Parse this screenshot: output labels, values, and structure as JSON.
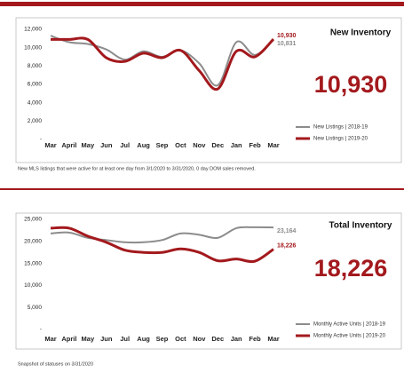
{
  "chart_data": [
    {
      "type": "line",
      "title": "New Inventory",
      "headline": "10,930",
      "note": "New MLS listings that were active for at least one day from 3/1/2020 to 3/31/2020, 0 day DOM sales removed.",
      "categories": [
        "Mar",
        "April",
        "May",
        "Jun",
        "Jul",
        "Aug",
        "Sep",
        "Oct",
        "Nov",
        "Dec",
        "Jan",
        "Feb",
        "Mar"
      ],
      "ylim": [
        0,
        12000
      ],
      "yticks": [
        {
          "value": 0,
          "label": "-"
        },
        {
          "value": 2000,
          "label": "2,000"
        },
        {
          "value": 4000,
          "label": "4,000"
        },
        {
          "value": 6000,
          "label": "6,000"
        },
        {
          "value": 8000,
          "label": "8,000"
        },
        {
          "value": 10000,
          "label": "10,000"
        },
        {
          "value": 12000,
          "label": "12,000"
        }
      ],
      "legend": "right",
      "series": [
        {
          "name": "New Listings | 2018-19",
          "color": "#8c8c8c",
          "values": [
            11300,
            10600,
            10400,
            9800,
            8700,
            9600,
            9000,
            9700,
            8300,
            5900,
            10600,
            9200,
            10831
          ],
          "value_labels": [
            null,
            null,
            null,
            null,
            null,
            null,
            null,
            null,
            null,
            null,
            null,
            null,
            "10,831"
          ]
        },
        {
          "name": "New Listings | 2019-20",
          "color": "#a3191d",
          "values": [
            10900,
            10900,
            10900,
            8900,
            8500,
            9400,
            8900,
            9700,
            7500,
            5500,
            9600,
            9000,
            10930
          ],
          "value_labels": [
            null,
            null,
            null,
            null,
            null,
            null,
            null,
            null,
            null,
            null,
            null,
            null,
            "10,930"
          ]
        }
      ]
    },
    {
      "type": "line",
      "title": "Total Inventory",
      "headline": "18,226",
      "note": "Snapshot of statuses on 3/31/2020",
      "categories": [
        "Mar",
        "April",
        "May",
        "Jun",
        "Jul",
        "Aug",
        "Sep",
        "Oct",
        "Nov",
        "Dec",
        "Jan",
        "Feb",
        "Mar"
      ],
      "ylim": [
        0,
        25000
      ],
      "yticks": [
        {
          "value": 0,
          "label": "-"
        },
        {
          "value": 5000,
          "label": "5,000"
        },
        {
          "value": 10000,
          "label": "10,000"
        },
        {
          "value": 15000,
          "label": "15,000"
        },
        {
          "value": 20000,
          "label": "20,000"
        },
        {
          "value": 25000,
          "label": "25,000"
        }
      ],
      "legend": "right",
      "series": [
        {
          "name": "Monthly Active Units | 2018-19",
          "color": "#8c8c8c",
          "values": [
            21800,
            22000,
            20800,
            20300,
            19800,
            19800,
            20300,
            21800,
            21500,
            20800,
            23000,
            23200,
            23164
          ],
          "value_labels": [
            null,
            null,
            null,
            null,
            null,
            null,
            null,
            null,
            null,
            null,
            null,
            null,
            "23,164"
          ]
        },
        {
          "name": "Monthly Active Units | 2019-20",
          "color": "#a3191d",
          "values": [
            23000,
            23000,
            21200,
            19800,
            18000,
            17500,
            17500,
            18300,
            17500,
            15600,
            16000,
            15500,
            18226
          ],
          "value_labels": [
            null,
            null,
            null,
            null,
            null,
            null,
            null,
            null,
            null,
            null,
            null,
            null,
            "18,226"
          ]
        }
      ]
    }
  ]
}
